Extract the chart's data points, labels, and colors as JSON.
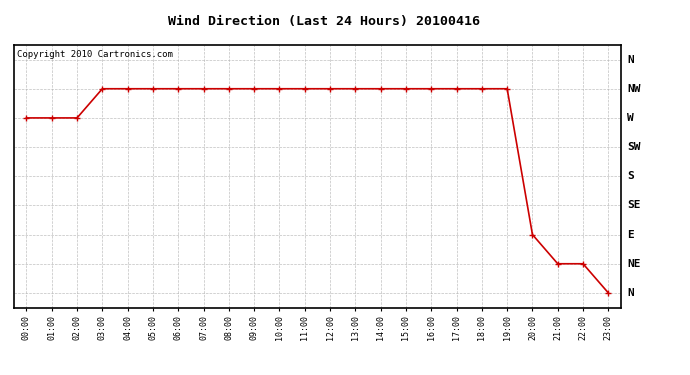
{
  "title": "Wind Direction (Last 24 Hours) 20100416",
  "copyright_text": "Copyright 2010 Cartronics.com",
  "line_color": "#cc0000",
  "bg_color": "#ffffff",
  "plot_bg_color": "#ffffff",
  "grid_color": "#b0b0b0",
  "ytick_labels": [
    "N",
    "NW",
    "W",
    "SW",
    "S",
    "SE",
    "E",
    "NE",
    "N"
  ],
  "ytick_values": [
    8,
    7,
    6,
    5,
    4,
    3,
    2,
    1,
    0
  ],
  "hours": [
    0,
    1,
    2,
    3,
    4,
    5,
    6,
    7,
    8,
    9,
    10,
    11,
    12,
    13,
    14,
    15,
    16,
    17,
    18,
    19,
    20,
    21,
    22,
    23
  ],
  "wind_values": [
    6,
    6,
    6,
    7,
    7,
    7,
    7,
    7,
    7,
    7,
    7,
    7,
    7,
    7,
    7,
    7,
    7,
    7,
    7,
    7,
    2,
    1,
    1,
    0
  ],
  "marker": "+",
  "marker_size": 4,
  "line_width": 1.2
}
